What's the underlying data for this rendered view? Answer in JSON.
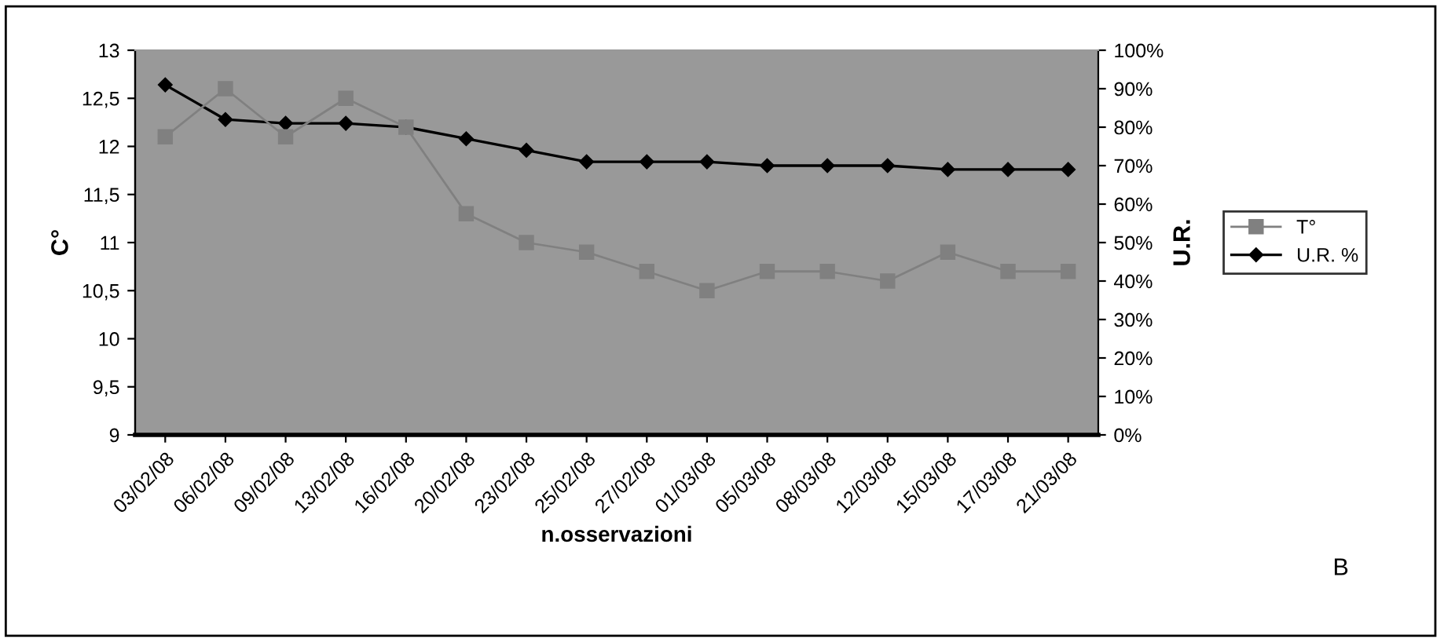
{
  "chart_data": {
    "type": "line",
    "xlabel": "n.osservazioni",
    "ylabel": "C°",
    "y2label": "U.R.",
    "categories": [
      "03/02/08",
      "06/02/08",
      "09/02/08",
      "13/02/08",
      "16/02/08",
      "20/02/08",
      "23/02/08",
      "25/02/08",
      "27/02/08",
      "01/03/08",
      "05/03/08",
      "08/03/08",
      "12/03/08",
      "15/03/08",
      "17/03/08",
      "21/03/08"
    ],
    "series": [
      {
        "name": "T°",
        "color": "#808080",
        "marker": "square",
        "values": [
          12.1,
          12.6,
          12.1,
          12.5,
          12.2,
          11.3,
          11.0,
          10.9,
          10.7,
          10.5,
          10.7,
          10.7,
          10.6,
          10.9,
          10.7,
          10.7
        ]
      },
      {
        "name": "U.R. %",
        "color": "#000000",
        "marker": "diamond",
        "axis": "y2",
        "values": [
          91,
          82,
          81,
          81,
          80,
          77,
          74,
          71,
          71,
          71,
          70,
          70,
          70,
          69,
          69,
          69
        ]
      }
    ],
    "ylim": [
      9,
      13
    ],
    "yticks": [
      9,
      {
        "value": 9.5,
        "label": "9,5"
      },
      10,
      {
        "value": 10.5,
        "label": "10,5"
      },
      11,
      {
        "value": 11.5,
        "label": "11,5"
      },
      12,
      {
        "value": 12.5,
        "label": "12,5"
      },
      13
    ],
    "y2lim": [
      0,
      100
    ],
    "y2ticks": [
      {
        "value": 0,
        "label": "0%"
      },
      {
        "value": 10,
        "label": "10%"
      },
      {
        "value": 20,
        "label": "20%"
      },
      {
        "value": 30,
        "label": "30%"
      },
      {
        "value": 40,
        "label": "40%"
      },
      {
        "value": 50,
        "label": "50%"
      },
      {
        "value": 60,
        "label": "60%"
      },
      {
        "value": 70,
        "label": "70%"
      },
      {
        "value": 80,
        "label": "80%"
      },
      {
        "value": 90,
        "label": "90%"
      },
      {
        "value": 100,
        "label": "100%"
      }
    ],
    "grid": false,
    "legend": "right",
    "line_style": "solid",
    "annotations": [
      "B"
    ]
  }
}
